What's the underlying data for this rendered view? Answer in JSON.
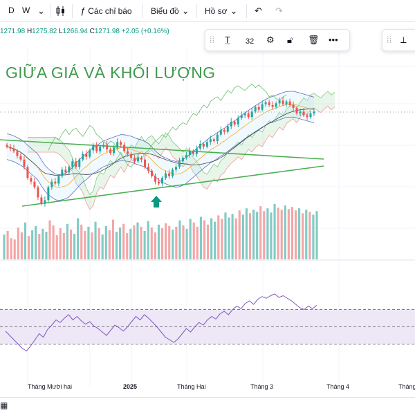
{
  "toolbar": {
    "interval_d": "D",
    "interval_w": "W",
    "indicators_label": "Các chỉ báo",
    "chart_label": "Biểu đồ",
    "profile_label": "Hồ sơ"
  },
  "ohlc": {
    "o_value": "1271.98",
    "h_label": "H",
    "h_value": "1275.82",
    "l_label": "L",
    "l_value": "1266.94",
    "c_label": "C",
    "c_value": "1271.98",
    "change": "+2.05 (+0.16%)"
  },
  "drawing_toolbar": {
    "text_tool": "T",
    "font_size": "32"
  },
  "headline": "GIỮA GIÁ VÀ KHỐI LƯỢNG",
  "colors": {
    "up": "#26a69a",
    "down": "#ef5350",
    "trendline": "#4caf50",
    "headline": "#3f9a4c",
    "rsi_line": "#7e57c2",
    "rsi_band": "#ede7f6",
    "arrow": "#089981"
  },
  "icons": {
    "left_toolbar": [
      "candles-icon",
      "indicators-icon",
      "chevron-down-icon",
      "undo-icon",
      "redo-icon"
    ],
    "drawing_toolbar": [
      "drag-handle-icon",
      "text-icon",
      "gear-icon",
      "lock-icon",
      "trash-icon",
      "more-icon"
    ]
  },
  "chart_data": [
    {
      "type": "candlestick",
      "title": "",
      "close_values": [
        1284,
        1282,
        1279,
        1274,
        1270,
        1262,
        1250,
        1246,
        1240,
        1229,
        1222,
        1226,
        1240,
        1246,
        1244,
        1252,
        1259,
        1256,
        1262,
        1268,
        1262,
        1270,
        1276,
        1273,
        1280,
        1285,
        1279,
        1284,
        1286,
        1281,
        1277,
        1283,
        1289,
        1286,
        1279,
        1276,
        1272,
        1268,
        1272,
        1270,
        1262,
        1258,
        1252,
        1246,
        1244,
        1250,
        1255,
        1252,
        1259,
        1262,
        1268,
        1272,
        1275,
        1279,
        1276,
        1282,
        1287,
        1284,
        1289,
        1292,
        1290,
        1297,
        1302,
        1300,
        1306,
        1311,
        1308,
        1315,
        1318,
        1320,
        1316,
        1322,
        1327,
        1324,
        1330,
        1332,
        1329,
        1327,
        1331,
        1334,
        1330,
        1333,
        1329,
        1326,
        1320,
        1322,
        1318,
        1316,
        1320,
        1322
      ],
      "x_tick_labels": [
        "Tháng Mười hai",
        "2025",
        "Tháng Hai",
        "Tháng 3",
        "Tháng 4",
        "Tháng"
      ],
      "trendlines": [
        "upper-descending",
        "lower-ascending"
      ],
      "indicators": [
        "ichimoku-cloud",
        "bollinger-bands",
        "moving-averages"
      ],
      "annotation": "up-arrow"
    },
    {
      "type": "bar",
      "title": "",
      "series": [
        {
          "values": [
            35,
            40,
            30,
            28,
            45,
            38,
            52,
            33,
            41,
            47,
            36,
            43,
            39,
            55,
            48,
            34,
            44,
            37,
            50,
            42,
            36,
            58,
            49,
            40,
            46,
            38,
            53,
            44,
            35,
            47,
            41,
            56,
            39,
            45,
            50,
            37,
            43,
            48,
            52,
            46,
            40,
            54,
            45,
            38,
            49,
            44,
            51,
            47,
            42,
            46,
            55,
            48,
            43,
            57,
            52,
            46,
            60,
            55,
            49,
            58,
            53,
            62,
            57,
            66,
            59,
            64,
            58,
            69,
            63,
            72,
            65,
            70,
            67,
            75,
            68,
            72,
            66,
            78,
            73,
            70,
            76,
            71,
            74,
            69,
            72,
            65,
            70,
            67,
            63,
            68
          ]
        }
      ]
    },
    {
      "type": "line",
      "title": "",
      "series": [
        {
          "values": [
            45,
            40,
            35,
            30,
            25,
            22,
            28,
            35,
            42,
            38,
            47,
            52,
            58,
            55,
            60,
            64,
            58,
            62,
            57,
            53,
            56,
            51,
            48,
            44,
            40,
            46,
            52,
            49,
            45,
            50,
            56,
            62,
            58,
            64,
            60,
            55,
            50,
            44,
            38,
            35,
            32,
            36,
            42,
            48,
            44,
            50,
            55,
            52,
            58,
            62,
            59,
            65,
            68,
            64,
            70,
            74,
            71,
            77,
            80,
            76,
            82,
            85,
            83,
            86,
            88,
            84,
            86,
            83,
            80,
            76,
            72,
            70,
            74,
            71,
            75
          ]
        }
      ],
      "bands": [
        70,
        50,
        30
      ]
    }
  ]
}
